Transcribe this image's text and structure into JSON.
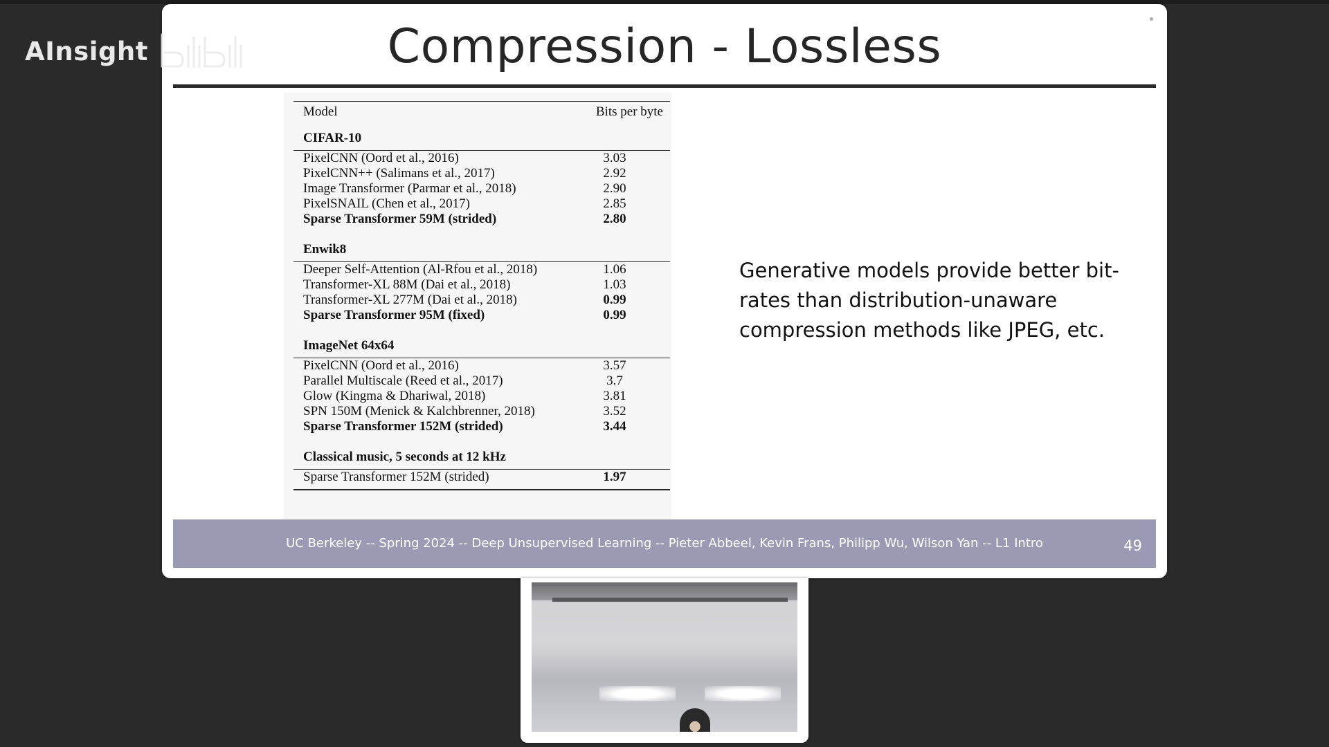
{
  "watermark": {
    "brand_text": "AInsight",
    "logo_icon": "bilibili-logo"
  },
  "slide": {
    "title": "Compression - Lossless",
    "table": {
      "header_model": "Model",
      "header_value": "Bits per byte",
      "sections": [
        {
          "name": "CIFAR-10",
          "rows": [
            {
              "model": "PixelCNN (Oord et al., 2016)",
              "value": "3.03",
              "bold": false
            },
            {
              "model": "PixelCNN++ (Salimans et al., 2017)",
              "value": "2.92",
              "bold": false
            },
            {
              "model": "Image Transformer (Parmar et al., 2018)",
              "value": "2.90",
              "bold": false
            },
            {
              "model": "PixelSNAIL (Chen et al., 2017)",
              "value": "2.85",
              "bold": false
            },
            {
              "model": "Sparse Transformer 59M (strided)",
              "value": "2.80",
              "bold": true
            }
          ]
        },
        {
          "name": "Enwik8",
          "rows": [
            {
              "model": "Deeper Self-Attention (Al-Rfou et al., 2018)",
              "value": "1.06",
              "bold": false
            },
            {
              "model": "Transformer-XL 88M (Dai et al., 2018)",
              "value": "1.03",
              "bold": false
            },
            {
              "model": "Transformer-XL 277M (Dai et al., 2018)",
              "value": "0.99",
              "bold": false,
              "value_bold": true
            },
            {
              "model": "Sparse Transformer 95M (fixed)",
              "value": "0.99",
              "bold": true
            }
          ]
        },
        {
          "name": "ImageNet 64x64",
          "rows": [
            {
              "model": "PixelCNN (Oord et al., 2016)",
              "value": "3.57",
              "bold": false
            },
            {
              "model": "Parallel Multiscale (Reed et al., 2017)",
              "value": "3.7",
              "bold": false
            },
            {
              "model": "Glow (Kingma & Dhariwal, 2018)",
              "value": "3.81",
              "bold": false
            },
            {
              "model": "SPN 150M (Menick & Kalchbrenner, 2018)",
              "value": "3.52",
              "bold": false
            },
            {
              "model": "Sparse Transformer 152M (strided)",
              "value": "3.44",
              "bold": true
            }
          ]
        },
        {
          "name": "Classical music, 5 seconds at 12 kHz",
          "rows": [
            {
              "model": "Sparse Transformer 152M (strided)",
              "value": "1.97",
              "bold": false,
              "value_bold": true
            }
          ]
        }
      ]
    },
    "body_text": "Generative models provide better bit-rates than distribution-unaware compression methods like JPEG, etc.",
    "footer_text": "UC Berkeley -- Spring 2024 -- Deep Unsupervised Learning -- Pieter Abbeel, Kevin Frans, Philipp Wu, Wilson Yan -- L1 Intro",
    "page_number": "49"
  },
  "webcam": {
    "icon": "webcam-feed"
  },
  "colors": {
    "background": "#2a2a2a",
    "footer": "#9a9ab5",
    "title": "#262626"
  }
}
